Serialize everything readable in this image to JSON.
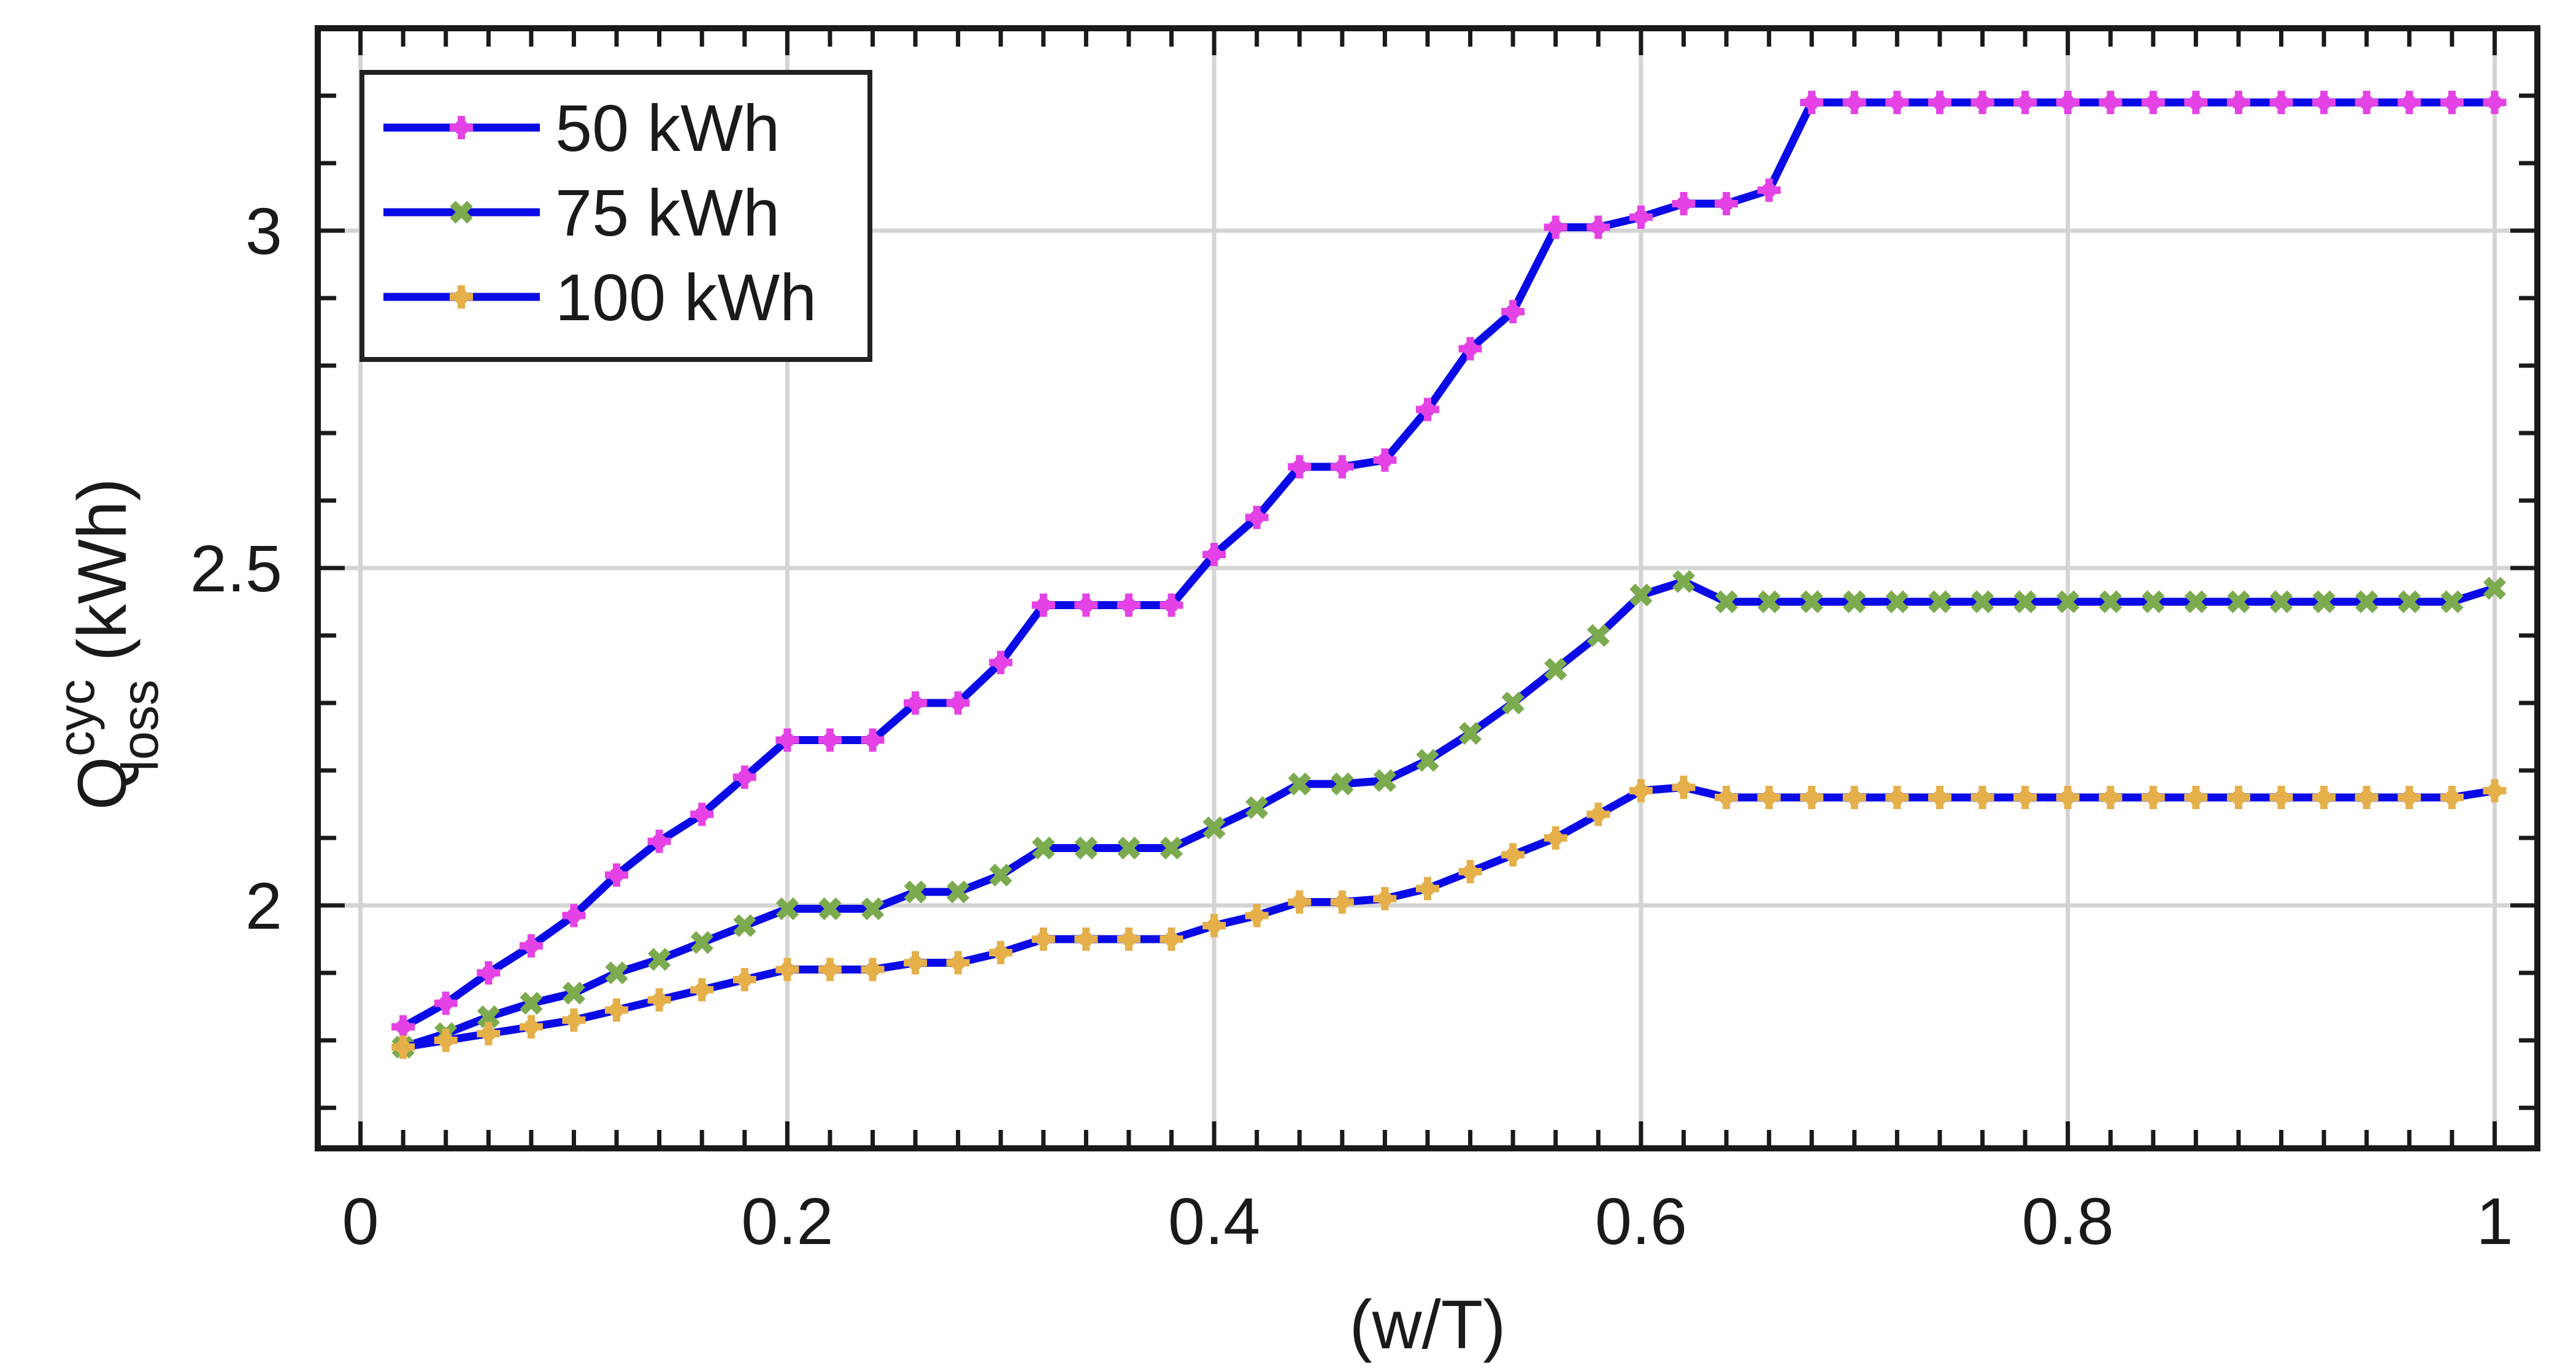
{
  "chart_data": {
    "type": "line",
    "title": "",
    "xlabel": "(w/T)",
    "ylabel": {
      "base": "Q",
      "superscript": "cyc",
      "subscript": "loss",
      "unit": "(kWh)"
    },
    "xlim": [
      -0.02,
      1.02
    ],
    "ylim": [
      1.64,
      3.3
    ],
    "xticks": [
      0,
      0.2,
      0.4,
      0.6,
      0.8,
      1
    ],
    "xtick_labels": [
      "0",
      "0.2",
      "0.4",
      "0.6",
      "0.8",
      "1"
    ],
    "yticks": [
      2,
      2.5,
      3
    ],
    "ytick_labels": [
      "2",
      "2.5",
      "3"
    ],
    "grid": true,
    "legend_position": "top-left",
    "line_color": "#0a0ae6",
    "x": [
      0.02,
      0.04,
      0.06,
      0.08,
      0.1,
      0.12,
      0.14,
      0.16,
      0.18,
      0.2,
      0.22,
      0.24,
      0.26,
      0.28,
      0.3,
      0.32,
      0.34,
      0.36,
      0.38,
      0.4,
      0.42,
      0.44,
      0.46,
      0.48,
      0.5,
      0.52,
      0.54,
      0.56,
      0.58,
      0.6,
      0.62,
      0.64,
      0.66,
      0.68,
      0.7,
      0.72,
      0.74,
      0.76,
      0.78,
      0.8,
      0.82,
      0.84,
      0.86,
      0.88,
      0.9,
      0.92,
      0.94,
      0.96,
      0.98,
      1.0
    ],
    "series": [
      {
        "name": "50 kWh",
        "marker_color": "#e542e5",
        "marker": "plus",
        "values": [
          1.82,
          1.855,
          1.9,
          1.94,
          1.985,
          2.045,
          2.095,
          2.135,
          2.19,
          2.245,
          2.245,
          2.245,
          2.3,
          2.3,
          2.36,
          2.445,
          2.445,
          2.445,
          2.445,
          2.52,
          2.575,
          2.65,
          2.65,
          2.66,
          2.735,
          2.825,
          2.88,
          3.005,
          3.005,
          3.02,
          3.04,
          3.04,
          3.06,
          3.19,
          3.19,
          3.19,
          3.19,
          3.19,
          3.19,
          3.19,
          3.19,
          3.19,
          3.19,
          3.19,
          3.19,
          3.19,
          3.19,
          3.19,
          3.19,
          3.19
        ]
      },
      {
        "name": "75 kWh",
        "marker_color": "#7caa4e",
        "marker": "x",
        "values": [
          1.79,
          1.81,
          1.835,
          1.855,
          1.87,
          1.9,
          1.92,
          1.945,
          1.97,
          1.995,
          1.995,
          1.995,
          2.02,
          2.02,
          2.045,
          2.085,
          2.085,
          2.085,
          2.085,
          2.115,
          2.145,
          2.18,
          2.18,
          2.185,
          2.215,
          2.255,
          2.3,
          2.35,
          2.4,
          2.46,
          2.48,
          2.45,
          2.45,
          2.45,
          2.45,
          2.45,
          2.45,
          2.45,
          2.45,
          2.45,
          2.45,
          2.45,
          2.45,
          2.45,
          2.45,
          2.45,
          2.45,
          2.45,
          2.45,
          2.47
        ]
      },
      {
        "name": "100 kWh",
        "marker_color": "#e5b04a",
        "marker": "plus",
        "values": [
          1.79,
          1.8,
          1.81,
          1.82,
          1.83,
          1.845,
          1.86,
          1.875,
          1.89,
          1.905,
          1.905,
          1.905,
          1.915,
          1.915,
          1.93,
          1.95,
          1.95,
          1.95,
          1.95,
          1.97,
          1.985,
          2.005,
          2.005,
          2.01,
          2.025,
          2.05,
          2.075,
          2.1,
          2.135,
          2.17,
          2.175,
          2.16,
          2.16,
          2.16,
          2.16,
          2.16,
          2.16,
          2.16,
          2.16,
          2.16,
          2.16,
          2.16,
          2.16,
          2.16,
          2.16,
          2.16,
          2.16,
          2.16,
          2.16,
          2.17
        ]
      }
    ]
  }
}
